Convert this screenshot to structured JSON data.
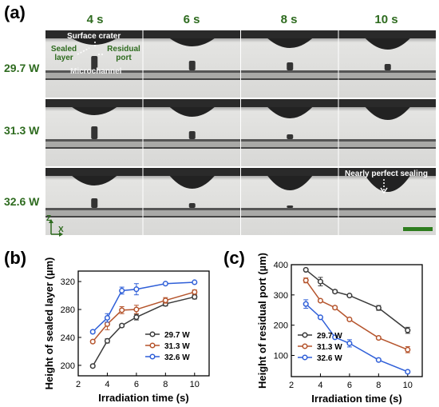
{
  "panel_a": {
    "label": "(a)",
    "times": [
      "4 s",
      "6 s",
      "8 s",
      "10 s"
    ],
    "powers": [
      "29.7 W",
      "31.3 W",
      "32.6 W"
    ],
    "annotations": {
      "surface_crater": "Surface crater",
      "sealed_layer_1": "Sealed",
      "sealed_layer_2": "layer",
      "residual_port_1": "Residual",
      "residual_port_2": "port",
      "microchannel": "Microchannel",
      "nearly_perfect": "Nearly perfect sealing",
      "axis_z": "Z",
      "axis_x": "X"
    },
    "scale_bar_color": "#2e7d1f"
  },
  "chart_data": [
    {
      "panel": "(b)",
      "type": "line",
      "xlabel": "Irradiation time (s)",
      "ylabel": "Height of sealed layer (µm)",
      "xlim": [
        2,
        11
      ],
      "ylim": [
        185,
        335
      ],
      "xticks": [
        2,
        4,
        6,
        8,
        10
      ],
      "yticks": [
        200,
        240,
        280,
        320
      ],
      "legend_position": "lower-right",
      "series": [
        {
          "name": "29.7 W",
          "color": "#3a3a3a",
          "x": [
            3,
            4,
            5,
            6,
            8,
            10
          ],
          "y": [
            199,
            235,
            257,
            269,
            288,
            298
          ],
          "err": [
            2,
            3,
            2,
            4,
            3,
            3
          ]
        },
        {
          "name": "31.3 W",
          "color": "#b5542c",
          "x": [
            3,
            4,
            5,
            6,
            8,
            10
          ],
          "y": [
            234,
            259,
            279,
            280,
            293,
            305
          ],
          "err": [
            2,
            8,
            5,
            6,
            4,
            3
          ]
        },
        {
          "name": "32.6 W",
          "color": "#2f5fd8",
          "x": [
            3,
            4,
            5,
            6,
            8,
            10
          ],
          "y": [
            248,
            268,
            307,
            309,
            317,
            319
          ],
          "err": [
            2,
            6,
            5,
            8,
            1,
            1
          ]
        }
      ]
    },
    {
      "panel": "(c)",
      "type": "line",
      "xlabel": "Irradiation time (s)",
      "ylabel": "Height of residual port (µm)",
      "xlim": [
        2,
        11
      ],
      "ylim": [
        30,
        400
      ],
      "xticks": [
        2,
        4,
        6,
        8,
        10
      ],
      "yticks": [
        100,
        200,
        300,
        400
      ],
      "legend_position": "lower-left",
      "series": [
        {
          "name": "29.7 W",
          "color": "#3a3a3a",
          "x": [
            3,
            4,
            5,
            6,
            8,
            10
          ],
          "y": [
            383,
            344,
            311,
            298,
            257,
            183
          ],
          "err": [
            3,
            14,
            5,
            4,
            8,
            10
          ]
        },
        {
          "name": "31.3 W",
          "color": "#b5542c",
          "x": [
            3,
            4,
            5,
            6,
            8,
            10
          ],
          "y": [
            348,
            281,
            258,
            219,
            158,
            119
          ],
          "err": [
            8,
            4,
            5,
            3,
            4,
            10
          ]
        },
        {
          "name": "32.6 W",
          "color": "#2f5fd8",
          "x": [
            3,
            4,
            5,
            6,
            8,
            10
          ],
          "y": [
            270,
            226,
            160,
            140,
            85,
            46
          ],
          "err": [
            14,
            4,
            3,
            12,
            3,
            2
          ]
        }
      ]
    }
  ]
}
